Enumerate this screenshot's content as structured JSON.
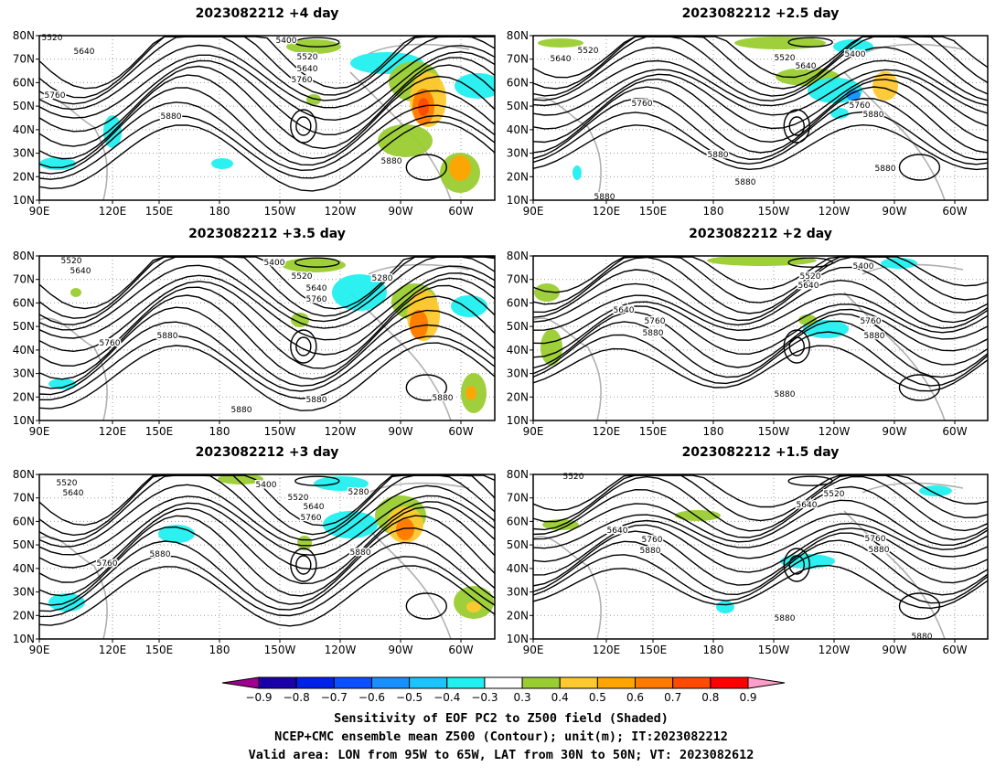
{
  "panels": [
    {
      "title": "2023082212 +4 day",
      "labels": [
        [
          "5520",
          57,
          44
        ],
        [
          "5640",
          92,
          59
        ],
        [
          "5400",
          313,
          47
        ],
        [
          "5520",
          336,
          65
        ],
        [
          "5640",
          336,
          78
        ],
        [
          "5760",
          330,
          90
        ],
        [
          "5760",
          60,
          107
        ],
        [
          "5880",
          187,
          130
        ],
        [
          "5880",
          428,
          179
        ]
      ]
    },
    {
      "title": "2023082212 +2.5 day",
      "labels": [
        [
          "5520",
          643,
          58
        ],
        [
          "5640",
          613,
          67
        ],
        [
          "5520",
          858,
          66
        ],
        [
          "5640",
          881,
          75
        ],
        [
          "5400",
          935,
          62
        ],
        [
          "5760",
          702,
          116
        ],
        [
          "5760",
          940,
          118
        ],
        [
          "5880",
          955,
          128
        ],
        [
          "5880",
          785,
          172
        ],
        [
          "5880",
          815,
          202
        ],
        [
          "5880",
          968,
          187
        ],
        [
          "5880",
          661,
          218
        ]
      ]
    },
    {
      "title": "2023082212 +3.5 day",
      "labels": [
        [
          "5520",
          78,
          288
        ],
        [
          "5640",
          88,
          299
        ],
        [
          "5400",
          300,
          290
        ],
        [
          "5520",
          330,
          305
        ],
        [
          "5640",
          346,
          318
        ],
        [
          "5760",
          346,
          330
        ],
        [
          "5280",
          418,
          307
        ],
        [
          "5760",
          120,
          378
        ],
        [
          "5880",
          183,
          370
        ],
        [
          "5880",
          264,
          451
        ],
        [
          "5880",
          346,
          440
        ],
        [
          "5880",
          484,
          438
        ]
      ]
    },
    {
      "title": "2023082212 +2 day",
      "labels": [
        [
          "5520",
          886,
          305
        ],
        [
          "5640",
          884,
          315
        ],
        [
          "5400",
          944,
          294
        ],
        [
          "5640",
          682,
          342
        ],
        [
          "5760",
          716,
          354
        ],
        [
          "5880",
          714,
          367
        ],
        [
          "5760",
          952,
          354
        ],
        [
          "5880",
          956,
          370
        ],
        [
          "5880",
          858,
          434
        ]
      ]
    },
    {
      "title": "2023082212 +3 day",
      "labels": [
        [
          "5520",
          73,
          531
        ],
        [
          "5640",
          80,
          542
        ],
        [
          "5400",
          291,
          533
        ],
        [
          "5520",
          326,
          547
        ],
        [
          "5640",
          343,
          557
        ],
        [
          "5760",
          340,
          569
        ],
        [
          "5280",
          392,
          541
        ],
        [
          "5880",
          175,
          609
        ],
        [
          "5880",
          394,
          607
        ],
        [
          "5760",
          117,
          619
        ]
      ]
    },
    {
      "title": "2023082212 +1.5 day",
      "labels": [
        [
          "5520",
          627,
          524
        ],
        [
          "5520",
          912,
          543
        ],
        [
          "5640",
          882,
          555
        ],
        [
          "5640",
          675,
          583
        ],
        [
          "5760",
          713,
          593
        ],
        [
          "5880",
          711,
          605
        ],
        [
          "5760",
          957,
          592
        ],
        [
          "5880",
          961,
          604
        ],
        [
          "5880",
          858,
          679
        ],
        [
          "5880",
          1008,
          699
        ]
      ]
    }
  ],
  "lat_labels": [
    "80N",
    "70N",
    "60N",
    "50N",
    "40N",
    "30N",
    "20N",
    "10N"
  ],
  "lon_labels": [
    "90E",
    "120E",
    "150E",
    "180",
    "150W",
    "120W",
    "90W",
    "60W"
  ],
  "colorbar": {
    "colors": [
      "#a00090",
      "#1a00a8",
      "#0022e8",
      "#0a50ff",
      "#1890ff",
      "#1cc4ff",
      "#22f0f0",
      "#ffffff",
      "#9acd32",
      "#ffc82e",
      "#ffa400",
      "#ff7a00",
      "#ff4a00",
      "#ff0000",
      "#ff9ec9"
    ],
    "ticks": [
      "-0.9",
      "-0.8",
      "-0.7",
      "-0.6",
      "-0.5",
      "-0.4",
      "-0.3",
      "0.3",
      "0.4",
      "0.5",
      "0.6",
      "0.7",
      "0.8",
      "0.9"
    ]
  },
  "caption": [
    "Sensitivity of EOF PC2 to Z500 field (Shaded)",
    "NCEP+CMC ensemble mean Z500 (Contour); unit(m); IT:2023082212",
    "Valid area: LON from 95W to 65W, LAT from 30N to 50N; VT: 2023082612"
  ]
}
